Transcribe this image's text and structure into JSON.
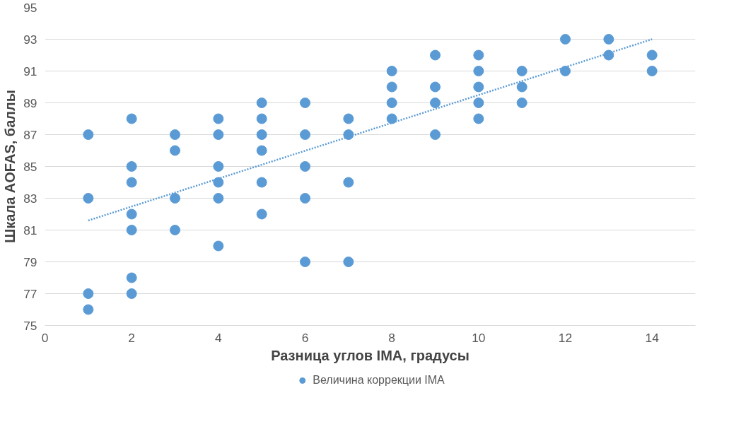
{
  "chart_data": {
    "type": "scatter",
    "xlabel": "Разница углов IMA, градусы",
    "ylabel": "Шкала AOFAS, баллы",
    "xlim": [
      0,
      15
    ],
    "xticks": [
      0,
      2,
      4,
      6,
      8,
      10,
      12,
      14
    ],
    "ylim": [
      75,
      95
    ],
    "yticks": [
      75,
      77,
      79,
      81,
      83,
      85,
      87,
      89,
      91,
      93,
      95
    ],
    "grid": "y",
    "legend": "bottom",
    "series": [
      {
        "name": "Величина коррекции IMA",
        "color": "#5b9bd5",
        "marker": "circle",
        "x": [
          1,
          1,
          1,
          1,
          2,
          2,
          2,
          2,
          2,
          2,
          2,
          3,
          3,
          3,
          3,
          4,
          4,
          4,
          4,
          4,
          4,
          5,
          5,
          5,
          5,
          5,
          5,
          6,
          6,
          6,
          6,
          6,
          7,
          7,
          7,
          7,
          8,
          8,
          8,
          8,
          9,
          9,
          9,
          9,
          10,
          10,
          10,
          10,
          10,
          11,
          11,
          11,
          12,
          12,
          13,
          13,
          14,
          14
        ],
        "values": [
          87,
          83,
          77,
          76,
          88,
          85,
          84,
          82,
          81,
          78,
          77,
          87,
          86,
          83,
          81,
          88,
          87,
          85,
          84,
          83,
          80,
          89,
          88,
          87,
          86,
          84,
          82,
          89,
          87,
          85,
          83,
          79,
          88,
          87,
          84,
          79,
          91,
          90,
          89,
          88,
          92,
          90,
          89,
          87,
          92,
          91,
          90,
          89,
          88,
          91,
          90,
          89,
          93,
          91,
          93,
          92,
          92,
          91
        ]
      },
      {
        "type": "line",
        "color": "#5b9bd5",
        "line_style": "dotted",
        "x": [
          1,
          14
        ],
        "values": [
          81.6,
          93.0
        ]
      }
    ]
  }
}
